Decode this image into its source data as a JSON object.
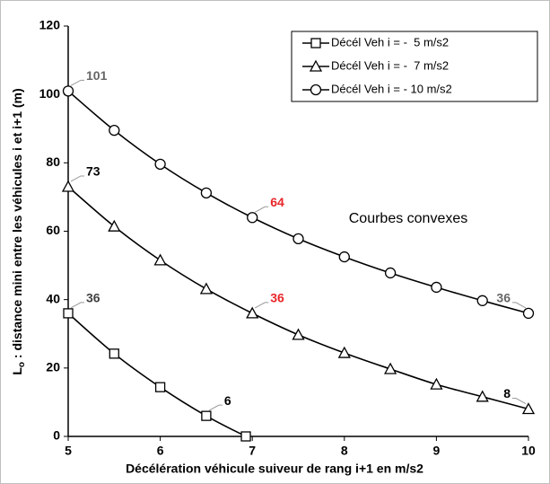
{
  "chart_data": {
    "type": "line",
    "xlabel": "Décélération véhicule suiveur de rang i+1 en m/s2",
    "ylabel_main": "L",
    "ylabel_sub": "o",
    "ylabel_rest": " : distance mini entre les véhicules i et i+1 (m)",
    "annotation": "Courbes convexes",
    "xlim": [
      5,
      10
    ],
    "xticks": [
      5,
      6,
      7,
      8,
      9,
      10
    ],
    "ylim": [
      0,
      120
    ],
    "yticks": [
      0,
      20,
      40,
      60,
      80,
      100,
      120
    ],
    "grid": false,
    "legend": "upper right",
    "series": [
      {
        "name": "Décél Veh i = -  5 m/s2",
        "color": "#000000",
        "marker": "square",
        "x": [
          5,
          5.5,
          6,
          6.5,
          6.93
        ],
        "values": [
          36,
          24.2,
          14.4,
          6,
          0
        ],
        "value_labels": [
          "36",
          null,
          null,
          "6",
          null
        ],
        "value_label_colors": [
          "#404040",
          null,
          null,
          "#000000",
          null
        ]
      },
      {
        "name": "Décél Veh i = -  7 m/s2",
        "color": "#000000",
        "marker": "triangle",
        "x": [
          5,
          5.5,
          6,
          6.5,
          7,
          7.5,
          8,
          8.5,
          9,
          9.5,
          10
        ],
        "values": [
          73,
          61.4,
          51.5,
          43.1,
          36,
          29.7,
          24.4,
          19.7,
          15.2,
          11.6,
          8
        ],
        "value_labels": [
          "73",
          null,
          null,
          null,
          "36",
          null,
          null,
          null,
          null,
          null,
          "8"
        ],
        "value_label_colors": [
          "#000000",
          null,
          null,
          null,
          "#e8262a",
          null,
          null,
          null,
          null,
          null,
          "#000000"
        ]
      },
      {
        "name": "Décél Veh i = - 10 m/s2",
        "color": "#000000",
        "marker": "circle",
        "x": [
          5,
          5.5,
          6,
          6.5,
          7,
          7.5,
          8,
          8.5,
          9,
          9.5,
          10
        ],
        "values": [
          101,
          89.5,
          79.6,
          71.2,
          64,
          57.8,
          52.5,
          47.8,
          43.6,
          39.7,
          36
        ],
        "value_labels": [
          "101",
          null,
          null,
          null,
          "64",
          null,
          null,
          null,
          null,
          null,
          "36"
        ],
        "value_label_colors": [
          "#666666",
          null,
          null,
          null,
          "#e8262a",
          null,
          null,
          null,
          null,
          null,
          "#666666"
        ]
      }
    ]
  }
}
